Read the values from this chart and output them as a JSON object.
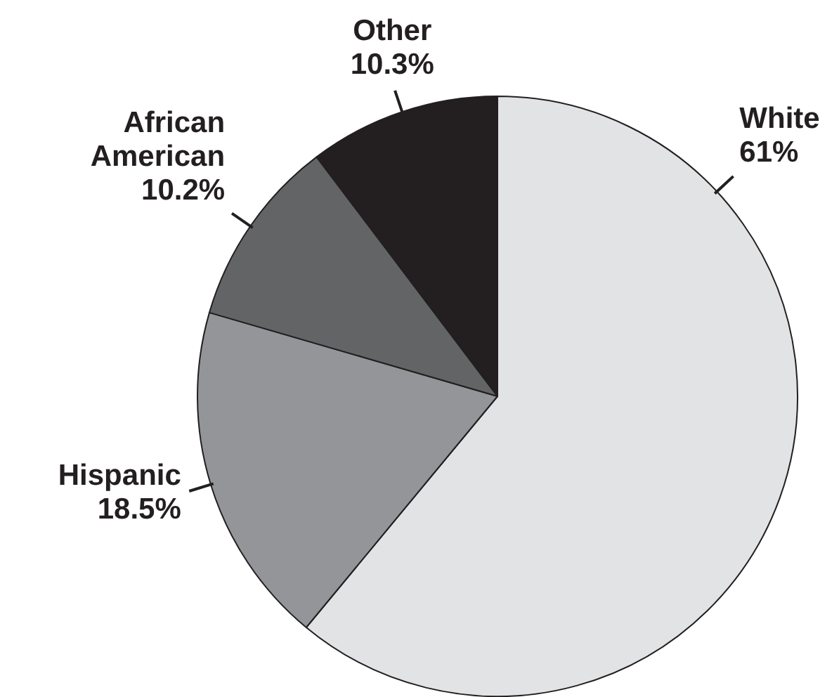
{
  "chart_data": {
    "type": "pie",
    "categories": [
      "White",
      "Hispanic",
      "African American",
      "Other"
    ],
    "values": [
      61,
      18.5,
      10.2,
      10.3
    ],
    "colors": [
      "#e2e3e5",
      "#939598",
      "#636466",
      "#231f20"
    ],
    "value_labels": [
      "61%",
      "18.5%",
      "10.2%",
      "10.3%"
    ]
  }
}
